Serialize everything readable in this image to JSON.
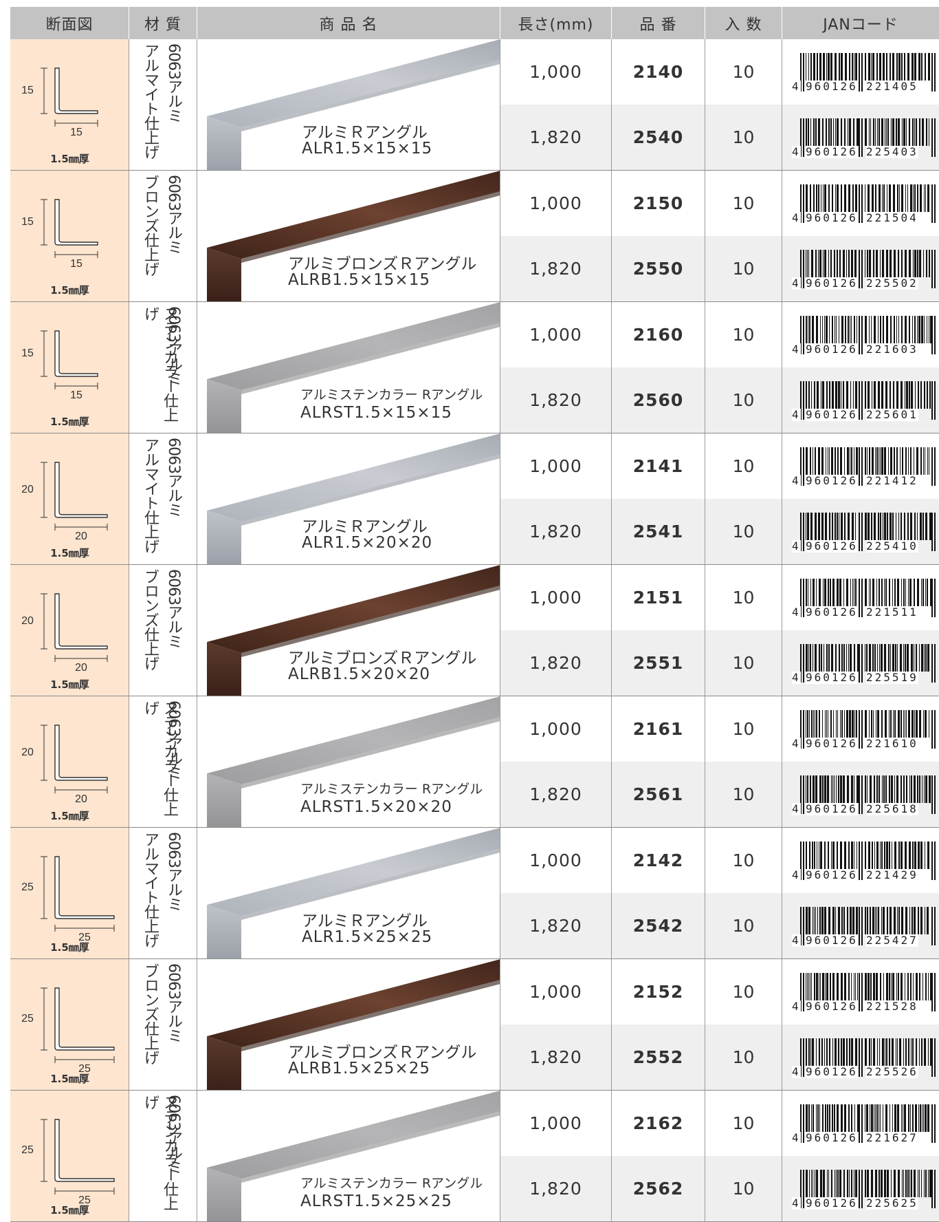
{
  "headers": {
    "section": "断面図",
    "material": "材 質",
    "product": "商 品 名",
    "length": "長さ(mm)",
    "number": "品 番",
    "qty": "入 数",
    "jan": "JANコード"
  },
  "colors": {
    "header_bg": "#c3c3c3",
    "section_bg": "#fde5cf",
    "alt_row_bg": "#efefef",
    "silver": "#b4b8c0",
    "bronze": "#5a3526",
    "stainless": "#a9a9ab"
  },
  "groups": [
    {
      "size": "15",
      "thickness": "1.5㎜厚",
      "mat_a": "6063アルミ",
      "mat_b": "アルマイト仕上げ",
      "finish": "silver",
      "name": "アルミＲアングル",
      "code": "ALR1.5×15×15",
      "rows": [
        {
          "length": "1,000",
          "number": "2140",
          "qty": "10",
          "jan_lead": "4",
          "jan_left": "960126",
          "jan_right": "221405"
        },
        {
          "length": "1,820",
          "number": "2540",
          "qty": "10",
          "jan_lead": "4",
          "jan_left": "960126",
          "jan_right": "225403"
        }
      ]
    },
    {
      "size": "15",
      "thickness": "1.5㎜厚",
      "mat_a": "6063アルミ",
      "mat_b": "ブロンズ仕上げ",
      "finish": "bronze",
      "name": "アルミブロンズＲアングル",
      "code": "ALRB1.5×15×15",
      "rows": [
        {
          "length": "1,000",
          "number": "2150",
          "qty": "10",
          "jan_lead": "4",
          "jan_left": "960126",
          "jan_right": "221504"
        },
        {
          "length": "1,820",
          "number": "2550",
          "qty": "10",
          "jan_lead": "4",
          "jan_left": "960126",
          "jan_right": "225502"
        }
      ]
    },
    {
      "size": "15",
      "thickness": "1.5㎜厚",
      "mat_a": "6063アルミ",
      "mat_b": "ステンカラー仕上げ",
      "finish": "stainless",
      "name": "アルミステンカラー Rアングル",
      "code": "ALRST1.5×15×15",
      "rows": [
        {
          "length": "1,000",
          "number": "2160",
          "qty": "10",
          "jan_lead": "4",
          "jan_left": "960126",
          "jan_right": "221603"
        },
        {
          "length": "1,820",
          "number": "2560",
          "qty": "10",
          "jan_lead": "4",
          "jan_left": "960126",
          "jan_right": "225601"
        }
      ]
    },
    {
      "size": "20",
      "thickness": "1.5㎜厚",
      "mat_a": "6063アルミ",
      "mat_b": "アルマイト仕上げ",
      "finish": "silver",
      "name": "アルミＲアングル",
      "code": "ALR1.5×20×20",
      "rows": [
        {
          "length": "1,000",
          "number": "2141",
          "qty": "10",
          "jan_lead": "4",
          "jan_left": "960126",
          "jan_right": "221412"
        },
        {
          "length": "1,820",
          "number": "2541",
          "qty": "10",
          "jan_lead": "4",
          "jan_left": "960126",
          "jan_right": "225410"
        }
      ]
    },
    {
      "size": "20",
      "thickness": "1.5㎜厚",
      "mat_a": "6063アルミ",
      "mat_b": "ブロンズ仕上げ",
      "finish": "bronze",
      "name": "アルミブロンズＲアングル",
      "code": "ALRB1.5×20×20",
      "rows": [
        {
          "length": "1,000",
          "number": "2151",
          "qty": "10",
          "jan_lead": "4",
          "jan_left": "960126",
          "jan_right": "221511"
        },
        {
          "length": "1,820",
          "number": "2551",
          "qty": "10",
          "jan_lead": "4",
          "jan_left": "960126",
          "jan_right": "225519"
        }
      ]
    },
    {
      "size": "20",
      "thickness": "1.5㎜厚",
      "mat_a": "6063アルミ",
      "mat_b": "ステンカラー仕上げ",
      "finish": "stainless",
      "name": "アルミステンカラー Rアングル",
      "code": "ALRST1.5×20×20",
      "rows": [
        {
          "length": "1,000",
          "number": "2161",
          "qty": "10",
          "jan_lead": "4",
          "jan_left": "960126",
          "jan_right": "221610"
        },
        {
          "length": "1,820",
          "number": "2561",
          "qty": "10",
          "jan_lead": "4",
          "jan_left": "960126",
          "jan_right": "225618"
        }
      ]
    },
    {
      "size": "25",
      "thickness": "1.5㎜厚",
      "mat_a": "6063アルミ",
      "mat_b": "アルマイト仕上げ",
      "finish": "silver",
      "name": "アルミＲアングル",
      "code": "ALR1.5×25×25",
      "rows": [
        {
          "length": "1,000",
          "number": "2142",
          "qty": "10",
          "jan_lead": "4",
          "jan_left": "960126",
          "jan_right": "221429"
        },
        {
          "length": "1,820",
          "number": "2542",
          "qty": "10",
          "jan_lead": "4",
          "jan_left": "960126",
          "jan_right": "225427"
        }
      ]
    },
    {
      "size": "25",
      "thickness": "1.5㎜厚",
      "mat_a": "6063アルミ",
      "mat_b": "ブロンズ仕上げ",
      "finish": "bronze",
      "name": "アルミブロンズＲアングル",
      "code": "ALRB1.5×25×25",
      "rows": [
        {
          "length": "1,000",
          "number": "2152",
          "qty": "10",
          "jan_lead": "4",
          "jan_left": "960126",
          "jan_right": "221528"
        },
        {
          "length": "1,820",
          "number": "2552",
          "qty": "10",
          "jan_lead": "4",
          "jan_left": "960126",
          "jan_right": "225526"
        }
      ]
    },
    {
      "size": "25",
      "thickness": "1.5㎜厚",
      "mat_a": "6063アルミ",
      "mat_b": "ステンカラー仕上げ",
      "finish": "stainless",
      "name": "アルミステンカラー Rアングル",
      "code": "ALRST1.5×25×25",
      "rows": [
        {
          "length": "1,000",
          "number": "2162",
          "qty": "10",
          "jan_lead": "4",
          "jan_left": "960126",
          "jan_right": "221627"
        },
        {
          "length": "1,820",
          "number": "2562",
          "qty": "10",
          "jan_lead": "4",
          "jan_left": "960126",
          "jan_right": "225625"
        }
      ]
    }
  ]
}
